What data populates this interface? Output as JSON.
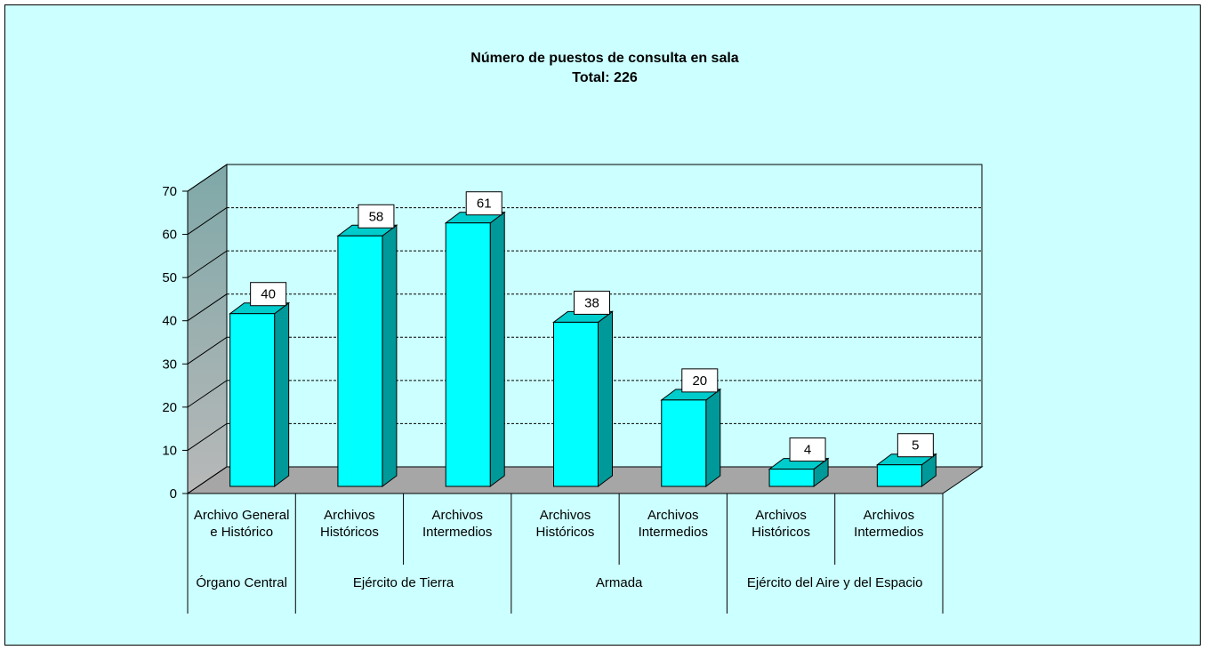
{
  "chart_data": {
    "type": "bar3d",
    "title": "Número de puestos de consulta en sala",
    "subtitle": "Total: 226",
    "groups": [
      {
        "name": "Órgano Central",
        "categories": [
          "Archivo General e Histórico"
        ],
        "values": [
          40
        ]
      },
      {
        "name": "Ejército de Tierra",
        "categories": [
          "Archivos Históricos",
          "Archivos Intermedios"
        ],
        "values": [
          58,
          61
        ]
      },
      {
        "name": "Armada",
        "categories": [
          "Archivos Históricos",
          "Archivos Intermedios"
        ],
        "values": [
          38,
          20
        ]
      },
      {
        "name": "Ejército del Aire y del Espacio",
        "categories": [
          "Archivos Históricos",
          "Archivos Intermedios"
        ],
        "values": [
          4,
          5
        ]
      }
    ],
    "color": "#00ffff",
    "ylim": [
      0,
      70
    ],
    "yticks": [
      0,
      10,
      20,
      30,
      40,
      50,
      60,
      70
    ],
    "grid": true
  }
}
